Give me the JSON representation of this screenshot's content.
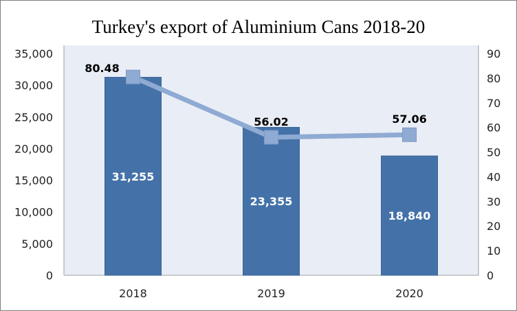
{
  "chart_data": {
    "type": "bar+line",
    "title": "Turkey's export of Aluminium Cans 2018-20",
    "categories": [
      "2018",
      "2019",
      "2020"
    ],
    "series": [
      {
        "type": "bar",
        "axis": "left",
        "values": [
          31255,
          23355,
          18840
        ],
        "labels": [
          "31,255",
          "23,355",
          "18,840"
        ],
        "color": "#4472a8"
      },
      {
        "type": "line",
        "axis": "right",
        "values": [
          80.48,
          56.02,
          57.06
        ],
        "labels": [
          "80.48",
          "56.02",
          "57.06"
        ],
        "color": "#8faad3"
      }
    ],
    "y_left": {
      "range": [
        0,
        35000
      ],
      "ticks": [
        "0",
        "5,000",
        "10,000",
        "15,000",
        "20,000",
        "25,000",
        "30,000",
        "35,000"
      ]
    },
    "y_right": {
      "range": [
        0,
        90
      ],
      "ticks": [
        "0",
        "10",
        "20",
        "30",
        "40",
        "50",
        "60",
        "70",
        "80",
        "90"
      ]
    },
    "plot_background": "#e9edf5",
    "grid": false,
    "legend": "none"
  }
}
